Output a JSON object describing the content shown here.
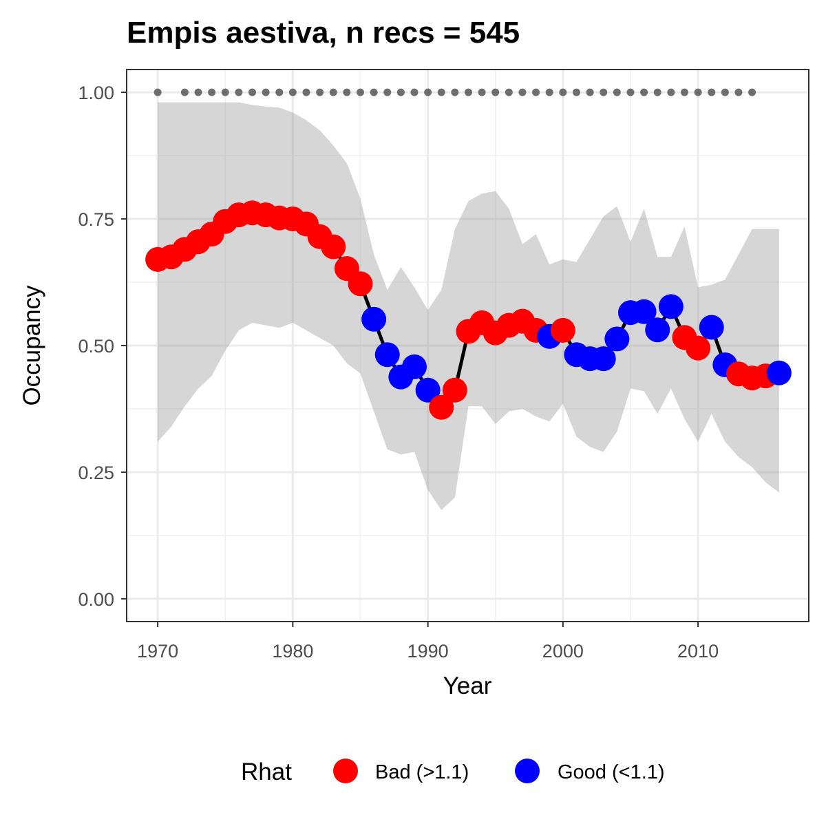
{
  "chart_data": {
    "type": "line",
    "title": "Empis aestiva, n recs = 545",
    "xlabel": "Year",
    "ylabel": "Occupancy",
    "xlim": [
      1967.7,
      1968.0
    ],
    "x_range": [
      1967.7,
      2018.2
    ],
    "ylim": [
      -0.045,
      1.045
    ],
    "x_ticks": [
      1970,
      1980,
      1990,
      2000,
      2010
    ],
    "x_tick_labels": [
      "1970",
      "1980",
      "1990",
      "2000",
      "2010"
    ],
    "y_ticks": [
      0,
      0.25,
      0.5,
      0.75,
      1
    ],
    "y_tick_labels": [
      "0.00",
      "0.25",
      "0.50",
      "0.75",
      "1.00"
    ],
    "grid": true,
    "legend": {
      "title": "Rhat",
      "position": "bottom",
      "entries": [
        {
          "key": "bad",
          "label": "Bad (>1.1)",
          "color": "#FF0000"
        },
        {
          "key": "good",
          "label": "Good (<1.1)",
          "color": "#0000FF"
        }
      ]
    },
    "series": [
      {
        "kind": "line+points",
        "x": [
          1970,
          1971,
          1972,
          1973,
          1974,
          1975,
          1976,
          1977,
          1978,
          1979,
          1980,
          1981,
          1982,
          1983,
          1984,
          1985,
          1986,
          1987,
          1988,
          1989,
          1990,
          1991,
          1992,
          1993,
          1994,
          1995,
          1996,
          1997,
          1998,
          1999,
          2000,
          2001,
          2002,
          2003,
          2004,
          2005,
          2006,
          2007,
          2008,
          2009,
          2010,
          2011,
          2012,
          2013,
          2014,
          2015,
          2016
        ],
        "y": [
          0.67,
          0.675,
          0.69,
          0.705,
          0.72,
          0.745,
          0.758,
          0.762,
          0.758,
          0.752,
          0.75,
          0.74,
          0.715,
          0.695,
          0.652,
          0.622,
          0.552,
          0.482,
          0.438,
          0.458,
          0.412,
          0.378,
          0.412,
          0.528,
          0.545,
          0.525,
          0.54,
          0.548,
          0.53,
          0.518,
          0.53,
          0.482,
          0.474,
          0.474,
          0.513,
          0.565,
          0.567,
          0.531,
          0.577,
          0.516,
          0.495,
          0.536,
          0.462,
          0.444,
          0.436,
          0.44,
          0.446
        ],
        "rhat": [
          "bad",
          "bad",
          "bad",
          "bad",
          "bad",
          "bad",
          "bad",
          "bad",
          "bad",
          "bad",
          "bad",
          "bad",
          "bad",
          "bad",
          "bad",
          "bad",
          "good",
          "good",
          "good",
          "good",
          "good",
          "bad",
          "bad",
          "bad",
          "bad",
          "bad",
          "bad",
          "bad",
          "bad",
          "good",
          "bad",
          "good",
          "good",
          "good",
          "good",
          "good",
          "good",
          "good",
          "good",
          "bad",
          "bad",
          "good",
          "good",
          "bad",
          "bad",
          "bad",
          "good"
        ]
      },
      {
        "kind": "ribbon",
        "x": [
          1970,
          1971,
          1972,
          1973,
          1974,
          1975,
          1976,
          1977,
          1978,
          1979,
          1980,
          1981,
          1982,
          1983,
          1984,
          1985,
          1986,
          1987,
          1988,
          1989,
          1990,
          1991,
          1992,
          1993,
          1994,
          1995,
          1996,
          1997,
          1998,
          1999,
          2000,
          2001,
          2002,
          2003,
          2004,
          2005,
          2006,
          2007,
          2008,
          2009,
          2010,
          2011,
          2012,
          2013,
          2014,
          2015,
          2016
        ],
        "upper": [
          0.98,
          0.98,
          0.98,
          0.98,
          0.98,
          0.98,
          0.98,
          0.975,
          0.972,
          0.97,
          0.96,
          0.945,
          0.925,
          0.895,
          0.86,
          0.79,
          0.68,
          0.61,
          0.655,
          0.615,
          0.57,
          0.61,
          0.73,
          0.785,
          0.8,
          0.805,
          0.77,
          0.7,
          0.72,
          0.66,
          0.67,
          0.665,
          0.71,
          0.755,
          0.775,
          0.705,
          0.77,
          0.675,
          0.675,
          0.735,
          0.615,
          0.62,
          0.63,
          0.68,
          0.73,
          0.73,
          0.73
        ],
        "lower": [
          0.31,
          0.34,
          0.38,
          0.415,
          0.44,
          0.49,
          0.53,
          0.545,
          0.54,
          0.535,
          0.545,
          0.53,
          0.515,
          0.5,
          0.465,
          0.445,
          0.37,
          0.295,
          0.285,
          0.29,
          0.215,
          0.175,
          0.2,
          0.38,
          0.38,
          0.345,
          0.37,
          0.375,
          0.36,
          0.35,
          0.385,
          0.32,
          0.3,
          0.29,
          0.33,
          0.415,
          0.41,
          0.365,
          0.415,
          0.355,
          0.31,
          0.365,
          0.31,
          0.28,
          0.26,
          0.23,
          0.21
        ]
      },
      {
        "kind": "dotted-reference",
        "x": [
          1970,
          1972,
          1973,
          1974,
          1975,
          1976,
          1977,
          1978,
          1979,
          1980,
          1981,
          1982,
          1983,
          1984,
          1985,
          1986,
          1987,
          1988,
          1989,
          1990,
          1991,
          1992,
          1993,
          1994,
          1995,
          1996,
          1997,
          1998,
          1999,
          2000,
          2001,
          2002,
          2003,
          2004,
          2005,
          2006,
          2007,
          2008,
          2009,
          2010,
          2011,
          2012,
          2013,
          2014
        ],
        "y": 1.0
      }
    ]
  }
}
